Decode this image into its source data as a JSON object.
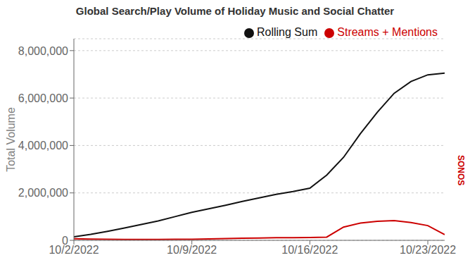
{
  "chart_data": {
    "type": "line",
    "title": "Global Search/Play Volume of Holiday Music and Social Chatter",
    "y_label": "Total Volume",
    "annotations": [
      "SONOS"
    ],
    "x": [
      0,
      1,
      2,
      3,
      4,
      5,
      6,
      7,
      8,
      9,
      10,
      11,
      12,
      13,
      14,
      15,
      16,
      17,
      18,
      19,
      20,
      21,
      22
    ],
    "xlim": [
      0,
      22
    ],
    "xticks": [
      {
        "value": 0,
        "label": "10/2/2022"
      },
      {
        "value": 7,
        "label": "10/9/2022"
      },
      {
        "value": 14,
        "label": "10/16/2022"
      },
      {
        "value": 21,
        "label": "10/23/2022"
      }
    ],
    "ylim": [
      0,
      8500000
    ],
    "yticks": [
      0,
      {
        "value": 2000000,
        "label": "2,000,000"
      },
      {
        "value": 4000000,
        "label": "4,000,000"
      },
      {
        "value": 6000000,
        "label": "6,000,000"
      },
      {
        "value": 8000000,
        "label": "8,000,000"
      }
    ],
    "series": [
      {
        "name": "Rolling Sum",
        "color": "#111111",
        "values": [
          150000,
          250000,
          380000,
          520000,
          670000,
          820000,
          1000000,
          1180000,
          1330000,
          1480000,
          1640000,
          1790000,
          1940000,
          2060000,
          2200000,
          2750000,
          3500000,
          4500000,
          5400000,
          6200000,
          6700000,
          6980000,
          7050000
        ]
      },
      {
        "name": "Streams + Mentions",
        "color": "#cc0000",
        "values": [
          70000,
          55000,
          45000,
          40000,
          38000,
          38000,
          42000,
          48000,
          60000,
          75000,
          90000,
          100000,
          110000,
          115000,
          120000,
          135000,
          560000,
          730000,
          800000,
          830000,
          750000,
          620000,
          240000
        ]
      }
    ],
    "grid": true,
    "legend": "upper right"
  }
}
